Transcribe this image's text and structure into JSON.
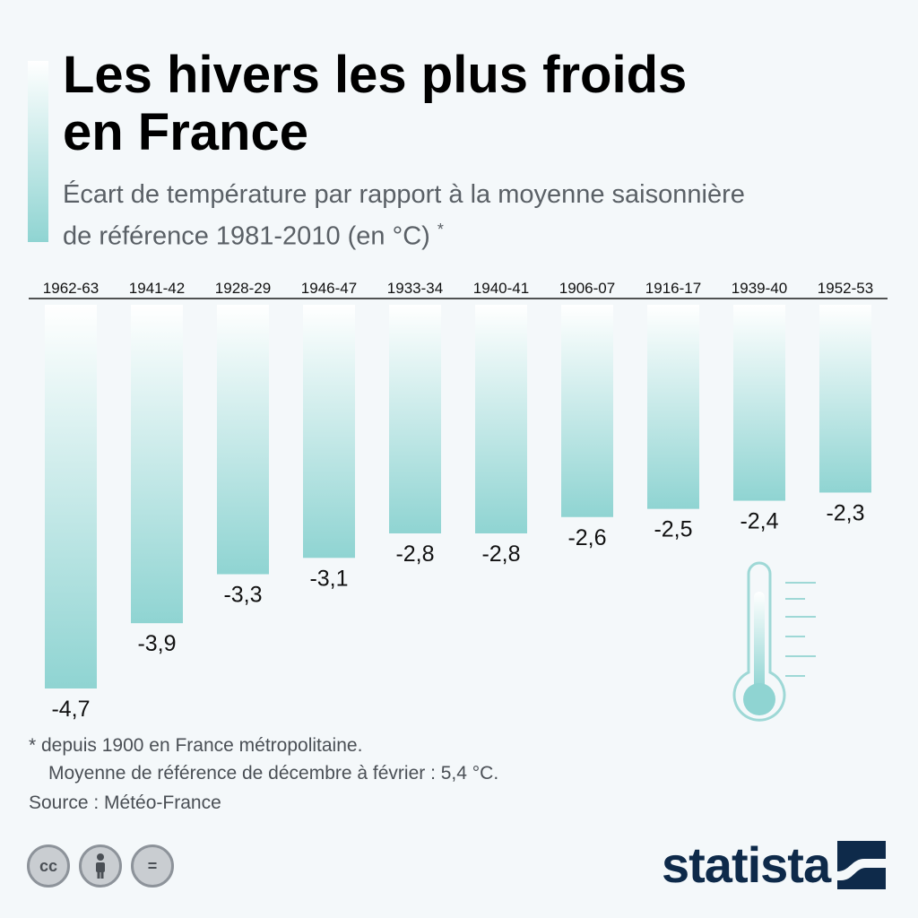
{
  "header": {
    "title_line1": "Les hivers les plus froids",
    "title_line2": "en France",
    "subtitle_line1": "Écart de température par rapport à la moyenne saisonnière",
    "subtitle_line2": "de référence 1981-2010 (en °C)",
    "subtitle_mark": "*"
  },
  "chart_data": {
    "type": "bar",
    "title": "Les hivers les plus froids en France",
    "subtitle": "Écart de température par rapport à la moyenne saisonnière de référence 1981-2010 (en °C) *",
    "categories": [
      "1962-63",
      "1941-42",
      "1928-29",
      "1946-47",
      "1933-34",
      "1940-41",
      "1906-07",
      "1916-17",
      "1939-40",
      "1952-53"
    ],
    "values": [
      -4.7,
      -3.9,
      -3.3,
      -3.1,
      -2.8,
      -2.8,
      -2.6,
      -2.5,
      -2.4,
      -2.3
    ],
    "value_labels": [
      "-4,7",
      "-3,9",
      "-3,3",
      "-3,1",
      "-2,8",
      "-2,8",
      "-2,6",
      "-2,5",
      "-2,4",
      "-2,3"
    ],
    "ylim": [
      -4.7,
      0
    ],
    "grid": false,
    "legend": "none",
    "category_axis_position": "top",
    "bar_color_top": "#ffffff",
    "bar_color_bottom": "#8fd4d2"
  },
  "footer": {
    "note_line1": "* depuis 1900 en France métropolitaine.",
    "note_line2": "Moyenne de référence de décembre à février : 5,4 °C.",
    "source": "Source : Météo-France",
    "license_icons": [
      "cc-icon",
      "attribution-person-icon",
      "no-derivatives-equals-icon"
    ],
    "license_glyphs": [
      "cc",
      "",
      "="
    ],
    "logo_text": "statista"
  },
  "colors": {
    "background": "#f4f8fa",
    "accent_teal": "#8fd4d2",
    "brand_navy": "#0e2a4a"
  }
}
